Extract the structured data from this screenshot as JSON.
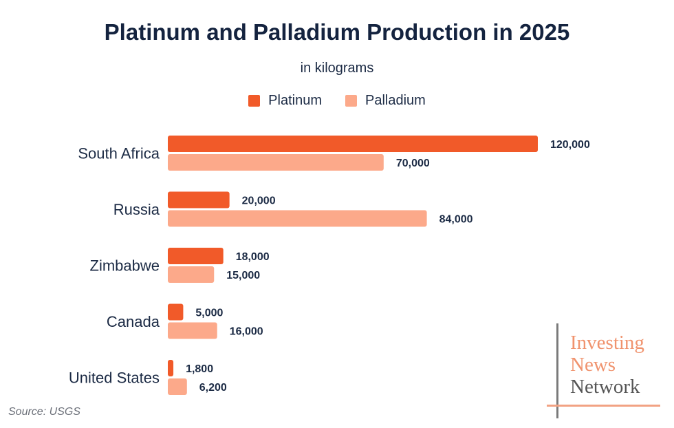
{
  "chart_data": {
    "type": "bar",
    "orientation": "horizontal",
    "title": "Platinum and Palladium Production in 2025",
    "subtitle": "in kilograms",
    "categories": [
      "South Africa",
      "Russia",
      "Zimbabwe",
      "Canada",
      "United States"
    ],
    "series": [
      {
        "name": "Platinum",
        "color": "#f15a29",
        "values": [
          120000,
          20000,
          18000,
          5000,
          1800
        ],
        "labels": [
          "120,000",
          "20,000",
          "18,000",
          "5,000",
          "1,800"
        ]
      },
      {
        "name": "Palladium",
        "color": "#fca98a",
        "values": [
          70000,
          84000,
          15000,
          16000,
          6200
        ],
        "labels": [
          "70,000",
          "84,000",
          "15,000",
          "16,000",
          "6,200"
        ]
      }
    ],
    "xlim": [
      0,
      120000
    ],
    "grid": false,
    "legend_position": "top-center",
    "data_labels": true
  },
  "source": "Source: USGS",
  "logo": {
    "words": [
      "Investing",
      "News",
      "Network"
    ],
    "colors": [
      "#f0936e",
      "#f0936e",
      "#555555"
    ],
    "line_colors": {
      "vertical": "#7a7a7a",
      "horizontal": "#f2a283"
    }
  }
}
